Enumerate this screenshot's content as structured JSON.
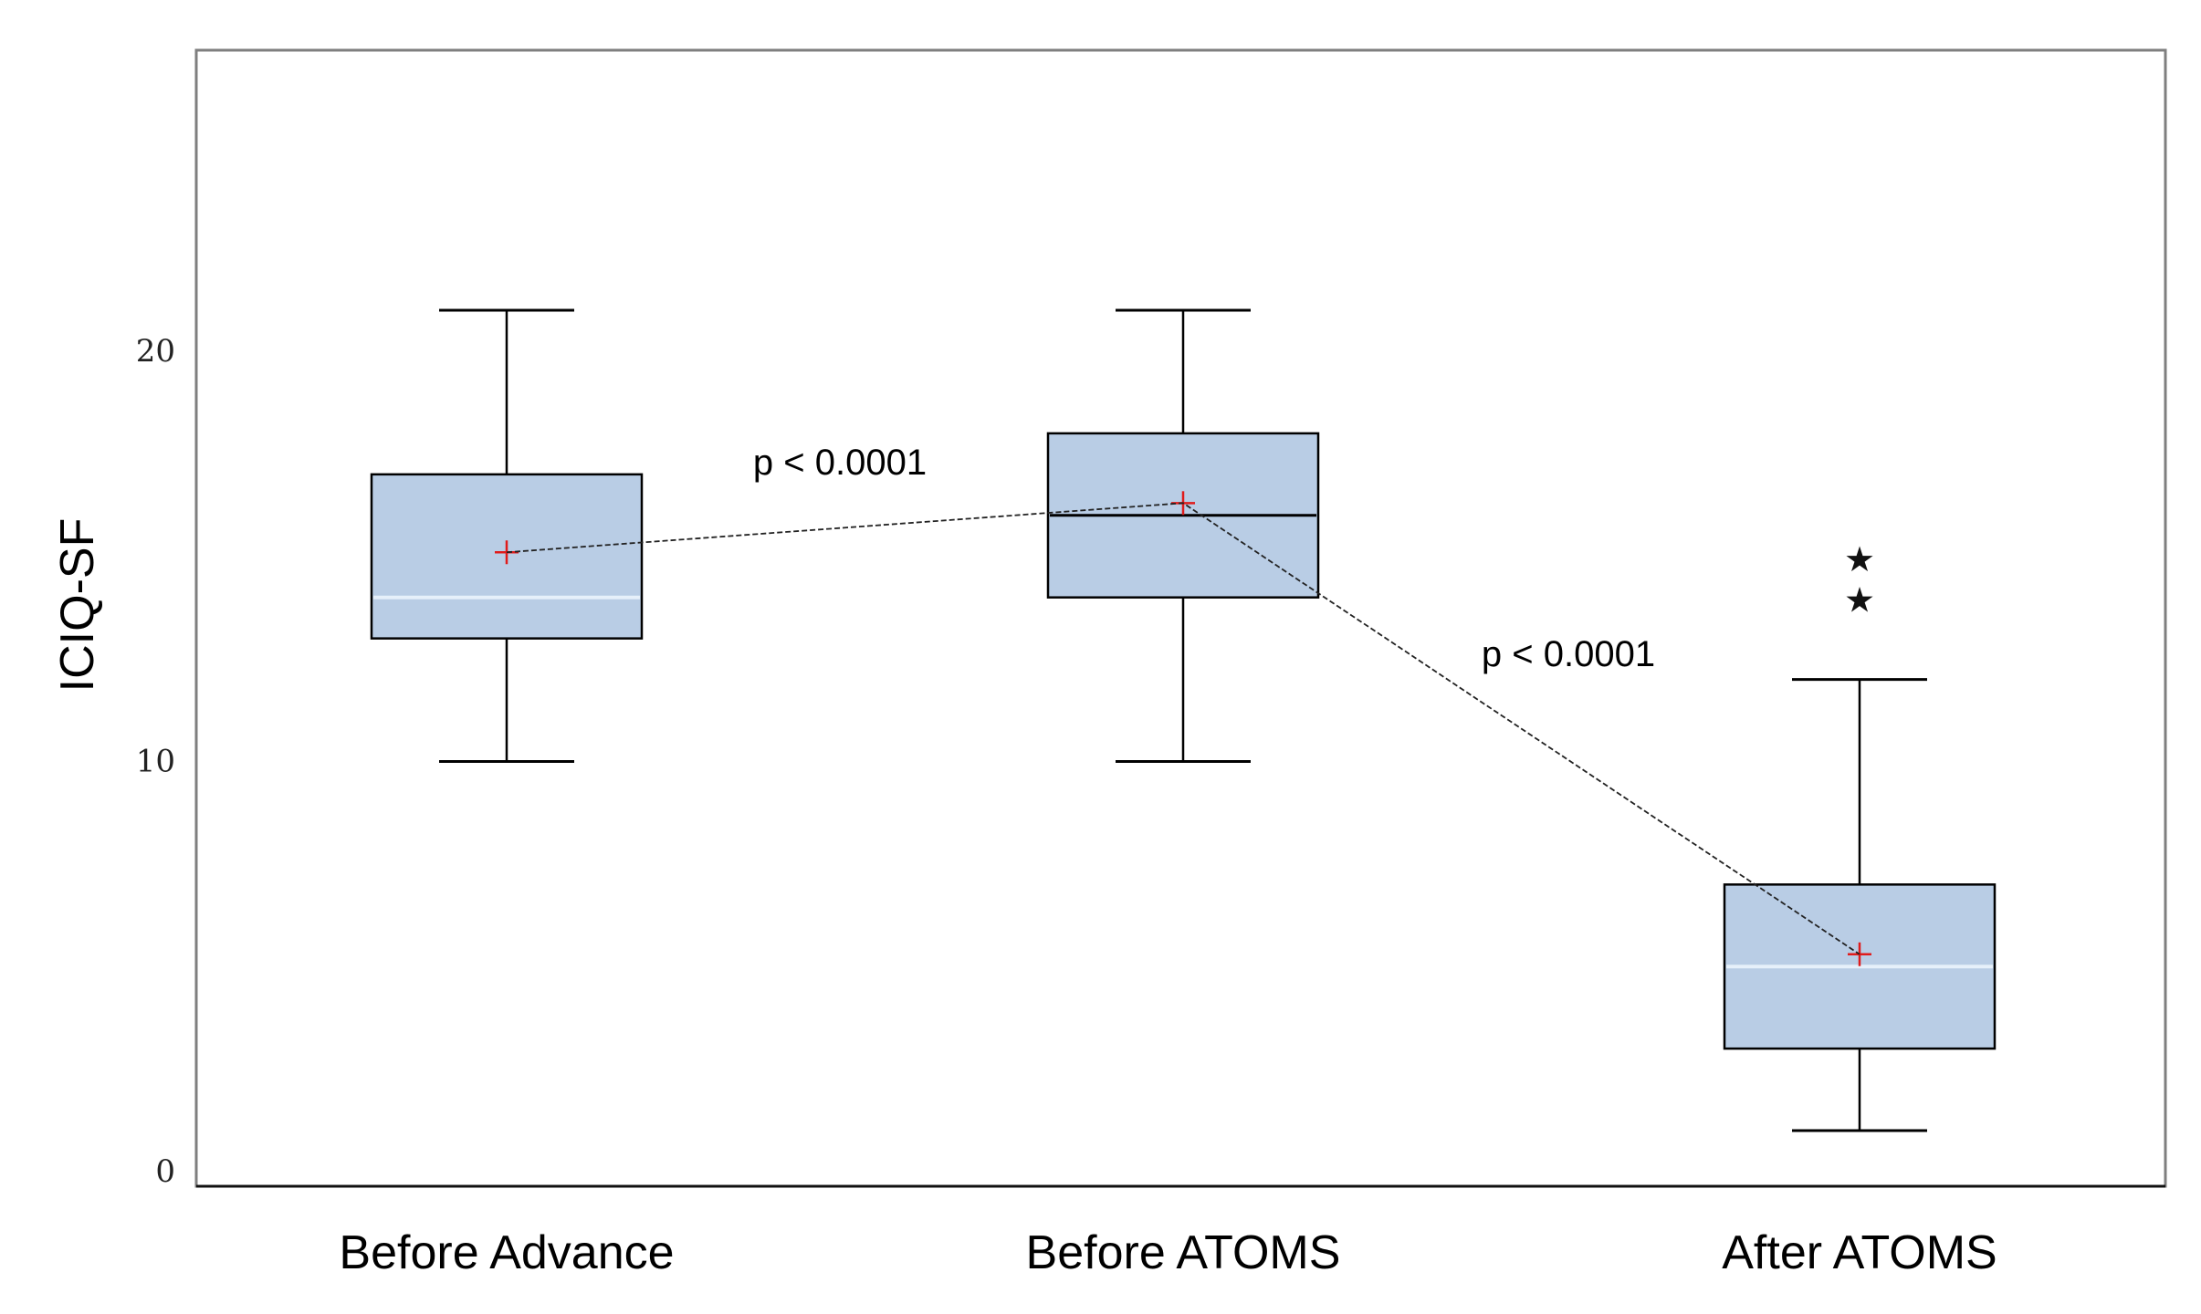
{
  "chart_data": {
    "type": "box",
    "ylabel": "ICIQ-SF",
    "xlabel": "",
    "ylim": [
      0,
      27.5
    ],
    "yticks": [
      0,
      10,
      20
    ],
    "grid": false,
    "categories": [
      "Before Advance",
      "Before ATOMS",
      "After ATOMS"
    ],
    "boxes": [
      {
        "category": "Before Advance",
        "whisker_low": 10,
        "q1": 13,
        "median": 14,
        "q3": 17,
        "whisker_high": 21,
        "mean": 15.1,
        "outliers": []
      },
      {
        "category": "Before ATOMS",
        "whisker_low": 10,
        "q1": 14,
        "median": 16,
        "q3": 18,
        "whisker_high": 21,
        "mean": 16.3,
        "outliers": []
      },
      {
        "category": "After ATOMS",
        "whisker_low": 1,
        "q1": 3,
        "median": 5,
        "q3": 7,
        "whisker_high": 12,
        "mean": 5.3,
        "outliers": [
          14,
          15
        ]
      }
    ],
    "mean_line": true,
    "annotations": [
      {
        "text": "p < 0.0001",
        "between": [
          "Before Advance",
          "Before ATOMS"
        ]
      },
      {
        "text": "p < 0.0001",
        "between": [
          "Before ATOMS",
          "After ATOMS"
        ]
      }
    ],
    "colors": {
      "box_fill": "#b9cde5",
      "box_edge": "#000000",
      "median_light": "#e6f0fa",
      "median_dark": "#000000",
      "mean_marker": "#e01b1b",
      "whisker": "#000000"
    }
  }
}
